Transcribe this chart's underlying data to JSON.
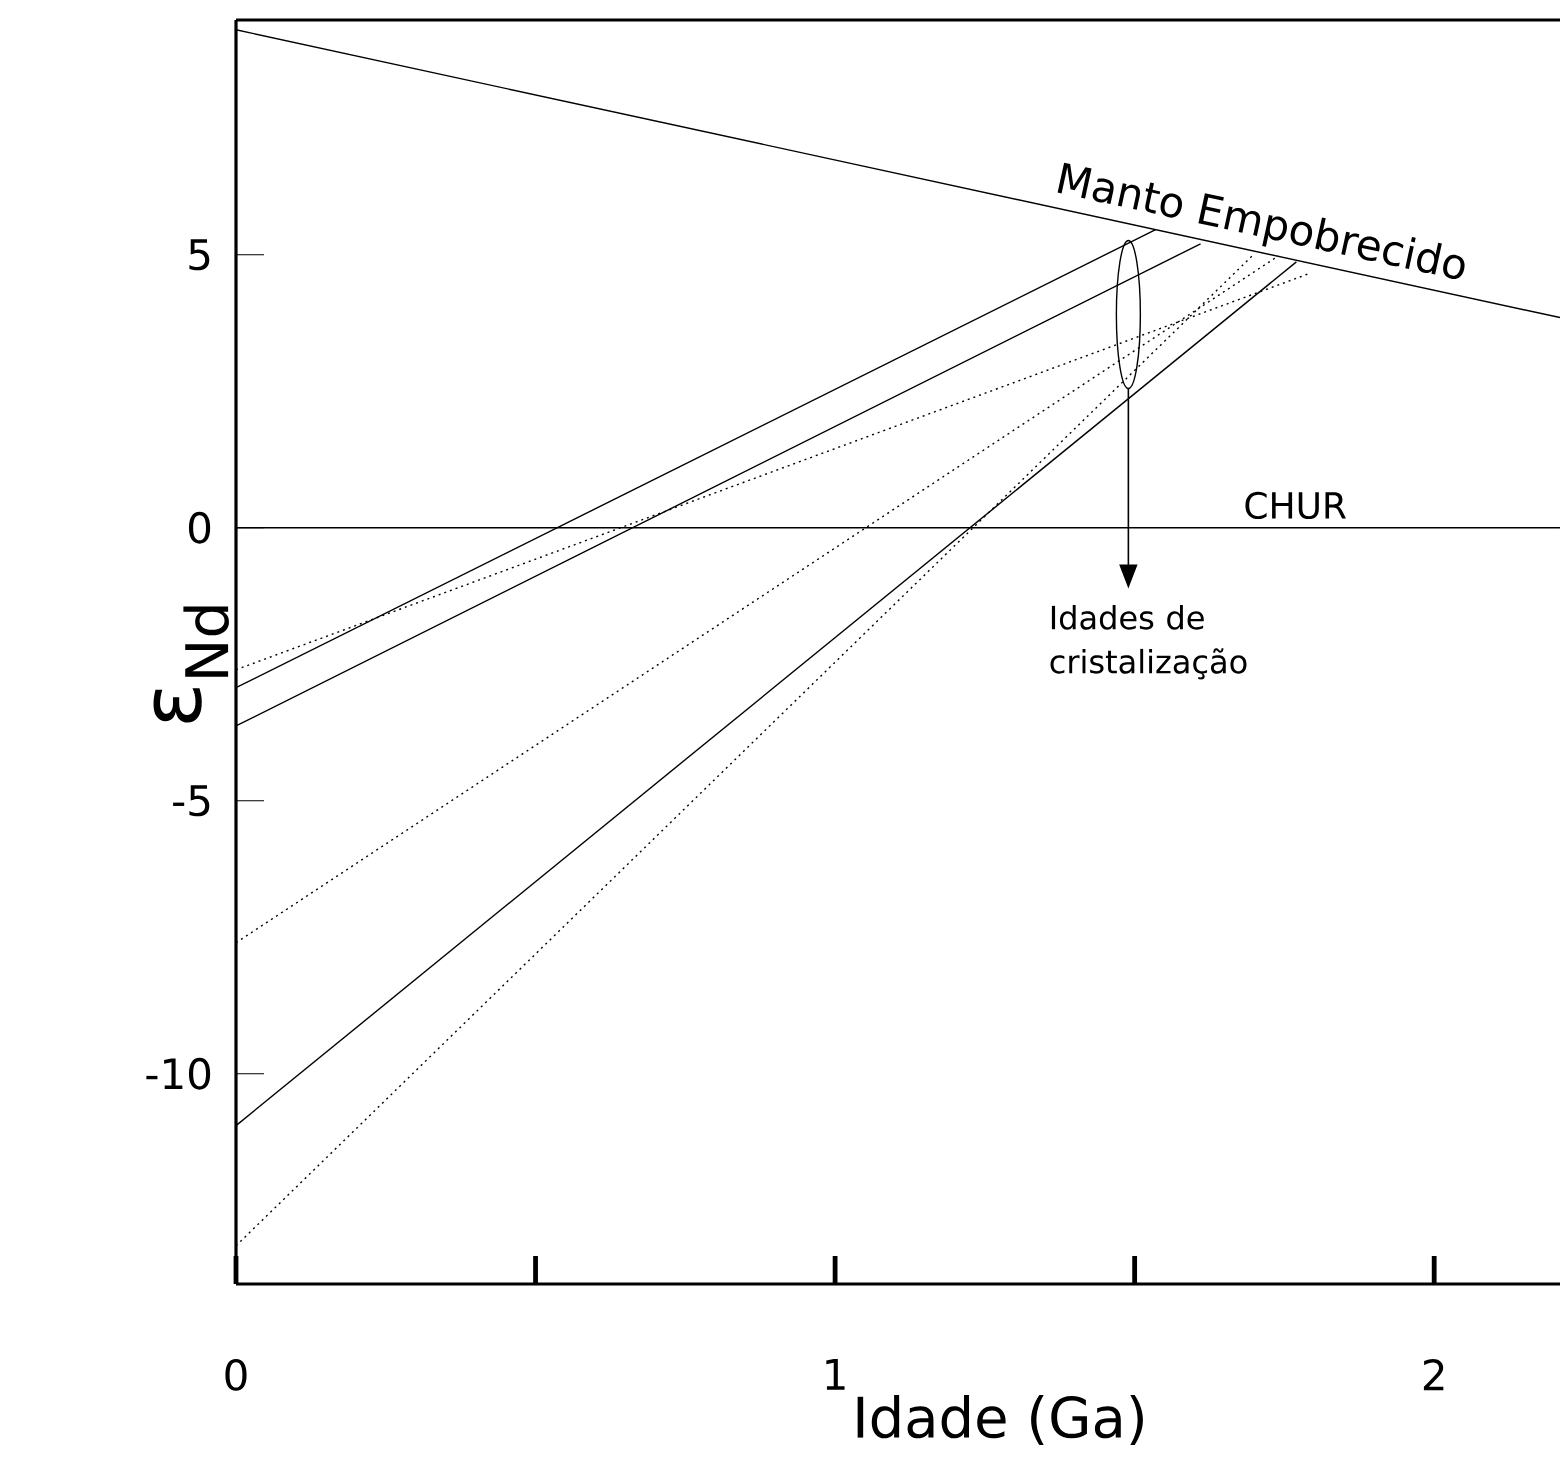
{
  "chart_data": {
    "type": "line",
    "xlabel": "Idade (Ga)",
    "ylabel": "ε$_{Nd}$",
    "xlim": [
      0,
      2.21
    ],
    "ylim": [
      -13.85,
      9.3
    ],
    "xticks": [
      0,
      {
        "value": 0.5,
        "label": null
      },
      1,
      {
        "value": 1.5,
        "label": null
      },
      2
    ],
    "yticks": [
      -10,
      -5,
      0,
      5
    ],
    "legend": false,
    "grid": false,
    "series": [
      {
        "name": "Manto Empobrecido",
        "color": "#000000",
        "line_style": "solid",
        "x": [
          0,
          2.21
        ],
        "values": [
          9.12,
          3.85
        ]
      },
      {
        "name": "CHUR",
        "color": "#000000",
        "line_style": "solid",
        "x": [
          0,
          2.21
        ],
        "values": [
          0,
          0
        ]
      },
      {
        "color": "#000000",
        "line_style": "solid",
        "x": [
          0,
          1.535
        ],
        "values": [
          -2.93,
          5.46
        ]
      },
      {
        "color": "#000000",
        "line_style": "solid",
        "x": [
          0,
          1.61
        ],
        "values": [
          -3.63,
          5.2
        ]
      },
      {
        "color": "#000000",
        "line_style": "solid",
        "x": [
          0,
          1.77
        ],
        "values": [
          -10.95,
          4.87
        ]
      },
      {
        "color": "#000000",
        "line_style": "dotted",
        "x": [
          0,
          1.79
        ],
        "values": [
          -2.6,
          4.65
        ]
      },
      {
        "color": "#000000",
        "line_style": "dotted",
        "x": [
          0,
          1.74
        ],
        "values": [
          -7.6,
          4.98
        ]
      },
      {
        "color": "#000000",
        "line_style": "dotted",
        "x": [
          0,
          1.7
        ],
        "values": [
          -13.15,
          5.02
        ]
      }
    ],
    "annotations": [
      "Idades de cristalização"
    ]
  }
}
